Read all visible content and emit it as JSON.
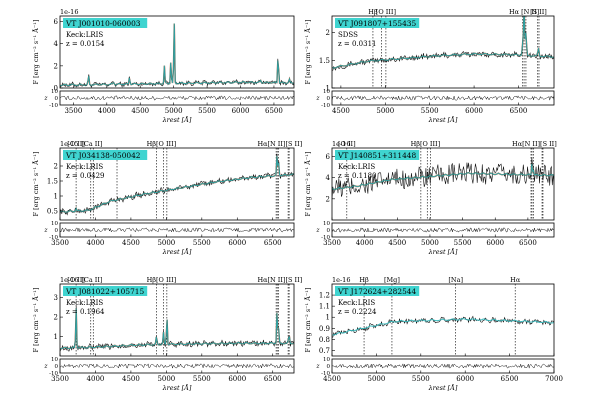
{
  "chart_data": [
    {
      "type": "line",
      "name": "VT J001010-060003",
      "instrument": "Keck:LRIS",
      "redshift": "z = 0.0154",
      "exponent": "1e-16",
      "xlim": [
        3300,
        6800
      ],
      "ylim": [
        0,
        6.5
      ],
      "xticks": [
        3500,
        4000,
        4500,
        5000,
        5500,
        6000,
        6500
      ],
      "yticks": [
        0,
        2,
        4,
        6
      ],
      "xlabel": "λrest [Å]",
      "ylabel": "F [erg cm⁻² s⁻¹ Å⁻¹]",
      "line_labels": [],
      "line_markers": [],
      "resid_ylim": [
        -10,
        10
      ],
      "resid_yticks": [
        -10,
        0,
        10
      ],
      "continuum": [
        [
          3300,
          0.35
        ],
        [
          4000,
          0.4
        ],
        [
          5000,
          0.5
        ],
        [
          6000,
          0.6
        ],
        [
          6800,
          0.55
        ]
      ],
      "emission": [
        [
          3727,
          0.9
        ],
        [
          4101,
          0.3
        ],
        [
          4340,
          0.7
        ],
        [
          4861,
          1.6
        ],
        [
          4959,
          2.2
        ],
        [
          5007,
          5.9
        ],
        [
          6300,
          0.2
        ],
        [
          6563,
          3.0
        ],
        [
          6731,
          0.3
        ]
      ],
      "noise": 0.03,
      "fit_color": "#2bb5b9",
      "line_color": "#b5451b"
    },
    {
      "type": "line",
      "name": "VT J091807+155435",
      "instrument": "SDSS",
      "redshift": "z = 0.0311",
      "exponent": "",
      "xlim": [
        4400,
        6900
      ],
      "ylim": [
        1.0,
        2.3
      ],
      "xticks": [
        4500,
        5000,
        5500,
        6000,
        6500
      ],
      "yticks": [
        1.0,
        1.5,
        2.0
      ],
      "xlabel": "λrest [Å]",
      "ylabel": "F [erg cm⁻² s⁻¹ Å⁻¹]",
      "line_labels": [
        {
          "text": "Hβ",
          "x": 4861
        },
        {
          "text": "[O III]",
          "x": 5007
        },
        {
          "text": "Hα [N II]",
          "x": 6563
        },
        {
          "text": "[S II]",
          "x": 6725
        }
      ],
      "line_markers": [
        4861,
        4959,
        5007,
        6548,
        6563,
        6584,
        6717,
        6731
      ],
      "resid_ylim": [
        -10,
        10
      ],
      "resid_yticks": [
        -10,
        0,
        10
      ],
      "continuum": [
        [
          4400,
          1.38
        ],
        [
          4800,
          1.5
        ],
        [
          5200,
          1.55
        ],
        [
          5600,
          1.6
        ],
        [
          6000,
          1.63
        ],
        [
          6400,
          1.62
        ],
        [
          6900,
          1.58
        ]
      ],
      "emission": [
        [
          6563,
          0.85
        ],
        [
          6584,
          0.4
        ],
        [
          6548,
          0.2
        ],
        [
          6725,
          0.15
        ]
      ],
      "noise": 0.04,
      "fit_color": "#2bb5b9",
      "line_color": "#b5451b"
    },
    {
      "type": "line",
      "name": "VT J034138-050042",
      "instrument": "Keck:LRIS",
      "redshift": "z = 0.0429",
      "exponent": "1e-15",
      "xlim": [
        3500,
        6800
      ],
      "ylim": [
        0.2,
        2.6
      ],
      "xticks": [
        3500,
        4000,
        4500,
        5000,
        5500,
        6000,
        6500
      ],
      "yticks": [
        0.5,
        1.0,
        1.5,
        2.0
      ],
      "xlabel": "λrest [Å]",
      "ylabel": "F [erg cm⁻² s⁻¹ Å⁻¹]",
      "line_labels": [
        {
          "text": "[O II]",
          "x": 3727
        },
        {
          "text": "[Ca II]",
          "x": 3950
        },
        {
          "text": "Hβ[O III]",
          "x": 4930
        },
        {
          "text": "Hα[N II][S II]",
          "x": 6600
        }
      ],
      "line_markers": [
        3727,
        3934,
        3969,
        4304,
        4861,
        4959,
        5007,
        6548,
        6563,
        6584,
        6717,
        6731
      ],
      "resid_ylim": [
        -10,
        10
      ],
      "resid_yticks": [
        -10,
        0,
        10
      ],
      "continuum": [
        [
          3500,
          0.5
        ],
        [
          3900,
          0.55
        ],
        [
          4200,
          0.85
        ],
        [
          4700,
          1.1
        ],
        [
          5200,
          1.3
        ],
        [
          5700,
          1.5
        ],
        [
          6200,
          1.65
        ],
        [
          6800,
          1.75
        ]
      ],
      "emission": [
        [
          6563,
          0.8
        ],
        [
          6584,
          0.4
        ],
        [
          3727,
          0.1
        ]
      ],
      "noise": 0.04,
      "fit_color": "#2bb5b9",
      "line_color": "#b5451b"
    },
    {
      "type": "line",
      "name": "VT J140851+311448",
      "instrument": "Keck:LRIS",
      "redshift": "z = 0.1180",
      "exponent": "1e-16",
      "xlim": [
        3500,
        6900
      ],
      "ylim": [
        0,
        6.8
      ],
      "xticks": [
        3500,
        4000,
        4500,
        5000,
        5500,
        6000,
        6500
      ],
      "yticks": [
        2,
        4,
        6
      ],
      "xlabel": "λrest [Å]",
      "ylabel": "F [erg cm⁻² s⁻¹ Å⁻¹]",
      "line_labels": [
        {
          "text": "[O II]",
          "x": 3727
        },
        {
          "text": "Hβ[O III]",
          "x": 4930
        },
        {
          "text": "Hα[N II][S II]",
          "x": 6600
        }
      ],
      "line_markers": [
        3727,
        4861,
        4959,
        5007,
        6548,
        6563,
        6584,
        6717,
        6731
      ],
      "resid_ylim": [
        -10,
        10
      ],
      "resid_yticks": [
        -10,
        0,
        10
      ],
      "continuum": [
        [
          3500,
          3.0
        ],
        [
          3900,
          3.3
        ],
        [
          4400,
          3.9
        ],
        [
          5000,
          4.2
        ],
        [
          5600,
          4.5
        ],
        [
          6200,
          4.4
        ],
        [
          6900,
          4.3
        ]
      ],
      "emission": [
        [
          6563,
          1.2
        ],
        [
          6584,
          0.5
        ]
      ],
      "noise": 0.15,
      "fit_color": "#2bb5b9",
      "line_color": "#b5451b"
    },
    {
      "type": "line",
      "name": "VT J081022+105715",
      "instrument": "Keck:LRIS",
      "redshift": "z = 0.1964",
      "exponent": "1e-16",
      "xlim": [
        3500,
        6800
      ],
      "ylim": [
        0,
        3.7
      ],
      "xticks": [
        3500,
        4000,
        4500,
        5000,
        5500,
        6000,
        6500
      ],
      "yticks": [
        1,
        2,
        3
      ],
      "xlabel": "λrest [Å]",
      "ylabel": "F [erg cm⁻² s⁻¹ Å⁻¹]",
      "line_labels": [
        {
          "text": "[O II]",
          "x": 3727
        },
        {
          "text": "[Ca II]",
          "x": 3950
        },
        {
          "text": "Hβ[O III]",
          "x": 4930
        },
        {
          "text": "Hα[N II][S II]",
          "x": 6600
        }
      ],
      "line_markers": [
        3727,
        3934,
        3969,
        4861,
        4959,
        5007,
        6548,
        6563,
        6584,
        6717,
        6731
      ],
      "resid_ylim": [
        -10,
        10
      ],
      "resid_yticks": [
        -10,
        0,
        10
      ],
      "continuum": [
        [
          3500,
          0.45
        ],
        [
          4000,
          0.5
        ],
        [
          4500,
          0.6
        ],
        [
          5000,
          0.65
        ],
        [
          5500,
          0.68
        ],
        [
          6000,
          0.7
        ],
        [
          6800,
          0.7
        ]
      ],
      "emission": [
        [
          3727,
          2.1
        ],
        [
          4861,
          0.4
        ],
        [
          4959,
          0.6
        ],
        [
          5007,
          1.5
        ],
        [
          6563,
          2.0
        ],
        [
          6584,
          0.7
        ],
        [
          6731,
          0.5
        ]
      ],
      "noise": 0.04,
      "fit_color": "#2bb5b9",
      "line_color": "#b5451b"
    },
    {
      "type": "line",
      "name": "VT J172624+282544",
      "instrument": "Keck:LRIS",
      "redshift": "z = 0.2224",
      "exponent": "1e-16",
      "xlim": [
        4500,
        7000
      ],
      "ylim": [
        0.65,
        1.3
      ],
      "xticks": [
        4500,
        5000,
        5500,
        6000,
        6500,
        7000
      ],
      "yticks": [
        0.7,
        0.8,
        0.9,
        1.0,
        1.1,
        1.2
      ],
      "xlabel": "λrest [Å]",
      "ylabel": "F [erg cm⁻² s⁻¹ Å⁻¹]",
      "line_labels": [
        {
          "text": "Hβ",
          "x": 4861
        },
        {
          "text": "[Mg]",
          "x": 5175
        },
        {
          "text": "[Na]",
          "x": 5893
        },
        {
          "text": "Hα",
          "x": 6563
        }
      ],
      "line_markers": [
        4861,
        5175,
        5893,
        6563
      ],
      "resid_ylim": [
        -10,
        10
      ],
      "resid_yticks": [
        -10,
        0,
        10
      ],
      "continuum": [
        [
          4500,
          0.85
        ],
        [
          4800,
          0.9
        ],
        [
          5200,
          0.97
        ],
        [
          5600,
          0.98
        ],
        [
          6000,
          0.99
        ],
        [
          6400,
          0.98
        ],
        [
          7000,
          0.96
        ]
      ],
      "emission": [],
      "noise": 0.035,
      "fit_color": "#2bb5b9",
      "line_color": "#b5451b"
    }
  ]
}
